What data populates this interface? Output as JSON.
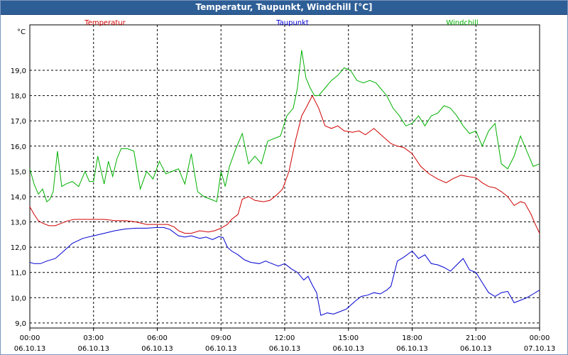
{
  "window": {
    "title": "Temperatur, Taupunkt, Windchill [°C]"
  },
  "colors": {
    "Temperatur": "#d00000",
    "Taupunkt": "#0000d0",
    "Windchill": "#00b000"
  },
  "chart_data": {
    "type": "line",
    "title": "Temperatur, Taupunkt, Windchill [°C]",
    "ylabel": "°C",
    "ylim": [
      8.8,
      20.8
    ],
    "yticks": [
      "19,0",
      "18,0",
      "17,0",
      "16,0",
      "15,0",
      "14,0",
      "13,0",
      "12,0",
      "11,0",
      "10,0",
      "9,0"
    ],
    "ytick_values": [
      19,
      18,
      17,
      16,
      15,
      14,
      13,
      12,
      11,
      10,
      9
    ],
    "xlim": [
      0,
      24
    ],
    "xtick_hours": [
      0,
      3,
      6,
      9,
      12,
      15,
      18,
      21,
      24
    ],
    "xticks_time": [
      "00:00",
      "03:00",
      "06:00",
      "09:00",
      "12:00",
      "15:00",
      "18:00",
      "21:00",
      "00:00"
    ],
    "xticks_date": [
      "06.10.13",
      "06.10.13",
      "06.10.13",
      "06.10.13",
      "06.10.13",
      "06.10.13",
      "06.10.13",
      "06.10.13",
      "07.10.13"
    ],
    "grid": true,
    "legend_position": "top",
    "series": [
      {
        "name": "Temperatur",
        "x": [
          0,
          0.2,
          0.4,
          0.6,
          0.9,
          1.2,
          1.5,
          1.8,
          2.1,
          2.5,
          3,
          3.5,
          4,
          4.5,
          5,
          5.5,
          6,
          6.5,
          6.8,
          7,
          7.3,
          7.6,
          8,
          8.4,
          8.7,
          9,
          9.3,
          9.5,
          9.8,
          10,
          10.3,
          10.6,
          11,
          11.3,
          11.6,
          11.9,
          12.2,
          12.5,
          12.8,
          13,
          13.3,
          13.6,
          13.9,
          14.2,
          14.5,
          14.8,
          15.2,
          15.5,
          15.8,
          16.2,
          16.6,
          17,
          17.3,
          17.6,
          18,
          18.4,
          18.8,
          19.2,
          19.6,
          19.9,
          20.3,
          20.6,
          21,
          21.3,
          21.6,
          21.9,
          22.2,
          22.5,
          22.8,
          23.1,
          23.3,
          23.6,
          23.8,
          24
        ],
        "y": [
          13.6,
          13.3,
          13.05,
          12.95,
          12.85,
          12.85,
          12.95,
          13.05,
          13.1,
          13.1,
          13.1,
          13.1,
          13.05,
          13.05,
          13.0,
          12.9,
          12.9,
          12.9,
          12.8,
          12.65,
          12.55,
          12.55,
          12.65,
          12.6,
          12.65,
          12.75,
          12.9,
          13.1,
          13.3,
          13.9,
          14.0,
          13.85,
          13.8,
          13.85,
          14.05,
          14.3,
          15.0,
          16.2,
          17.2,
          17.5,
          18.0,
          17.5,
          16.8,
          16.7,
          16.8,
          16.6,
          16.55,
          16.6,
          16.45,
          16.7,
          16.4,
          16.1,
          16.0,
          15.95,
          15.7,
          15.2,
          14.9,
          14.7,
          14.55,
          14.7,
          14.85,
          14.8,
          14.75,
          14.55,
          14.4,
          14.35,
          14.2,
          14.0,
          13.65,
          13.8,
          13.75,
          13.3,
          12.9,
          12.55
        ]
      },
      {
        "name": "Taupunkt",
        "x": [
          0,
          0.2,
          0.5,
          0.8,
          1.2,
          1.6,
          2,
          2.5,
          3,
          3.5,
          4,
          4.5,
          5,
          5.5,
          6,
          6.3,
          6.6,
          7,
          7.3,
          7.6,
          8,
          8.3,
          8.6,
          8.9,
          9.1,
          9.3,
          9.5,
          9.8,
          10.1,
          10.4,
          10.8,
          11.1,
          11.4,
          11.7,
          12,
          12.3,
          12.6,
          12.9,
          13.1,
          13.3,
          13.5,
          13.7,
          14,
          14.3,
          14.6,
          14.9,
          15.1,
          15.3,
          15.6,
          15.9,
          16.2,
          16.5,
          16.8,
          17,
          17.3,
          17.6,
          18,
          18.3,
          18.6,
          18.9,
          19.2,
          19.5,
          19.8,
          20.1,
          20.4,
          20.7,
          21,
          21.3,
          21.6,
          21.9,
          22.2,
          22.5,
          22.8,
          23.1,
          23.4,
          23.7,
          24
        ],
        "y": [
          11.4,
          11.35,
          11.35,
          11.45,
          11.55,
          11.85,
          12.15,
          12.35,
          12.45,
          12.55,
          12.65,
          12.72,
          12.75,
          12.75,
          12.78,
          12.78,
          12.7,
          12.45,
          12.4,
          12.45,
          12.35,
          12.4,
          12.3,
          12.42,
          12.38,
          12.0,
          11.85,
          11.7,
          11.5,
          11.4,
          11.35,
          11.45,
          11.35,
          11.25,
          11.35,
          11.15,
          11.0,
          10.7,
          10.85,
          10.5,
          10.2,
          9.3,
          9.4,
          9.35,
          9.45,
          9.55,
          9.7,
          9.85,
          10.05,
          10.1,
          10.2,
          10.15,
          10.3,
          10.45,
          11.45,
          11.6,
          11.85,
          11.55,
          11.7,
          11.35,
          11.3,
          11.2,
          11.05,
          11.3,
          11.55,
          11.1,
          11.0,
          10.6,
          10.2,
          10.05,
          10.2,
          10.25,
          9.8,
          9.9,
          10.0,
          10.15,
          10.3
        ]
      },
      {
        "name": "Windchill",
        "x": [
          0,
          0.2,
          0.4,
          0.6,
          0.8,
          0.95,
          1.1,
          1.3,
          1.5,
          1.7,
          2,
          2.3,
          2.6,
          2.8,
          3,
          3.2,
          3.5,
          3.7,
          3.9,
          4.1,
          4.3,
          4.6,
          4.9,
          5.2,
          5.5,
          5.8,
          6.1,
          6.4,
          6.7,
          7,
          7.3,
          7.6,
          7.9,
          8.2,
          8.5,
          8.8,
          9,
          9.2,
          9.4,
          9.7,
          10,
          10.3,
          10.6,
          10.9,
          11.2,
          11.5,
          11.8,
          12.1,
          12.4,
          12.6,
          12.8,
          13,
          13.2,
          13.4,
          13.6,
          13.9,
          14.2,
          14.5,
          14.8,
          15.1,
          15.4,
          15.7,
          16,
          16.3,
          16.5,
          16.8,
          17.1,
          17.4,
          17.7,
          18,
          18.3,
          18.6,
          18.9,
          19.2,
          19.5,
          19.8,
          20.1,
          20.4,
          20.7,
          21,
          21.3,
          21.6,
          21.9,
          22.2,
          22.5,
          22.8,
          23.1,
          23.4,
          23.7,
          24
        ],
        "y": [
          15.1,
          14.5,
          14.1,
          14.3,
          13.8,
          13.9,
          14.2,
          15.8,
          14.4,
          14.5,
          14.6,
          14.4,
          15.0,
          14.6,
          14.6,
          15.6,
          14.5,
          15.4,
          14.8,
          15.5,
          15.9,
          15.9,
          15.8,
          14.3,
          15.0,
          14.7,
          15.4,
          14.9,
          15.0,
          15.1,
          14.5,
          15.7,
          14.2,
          14.0,
          13.9,
          13.8,
          15.0,
          14.4,
          15.2,
          15.9,
          16.5,
          15.3,
          15.6,
          15.3,
          16.2,
          16.3,
          16.4,
          17.2,
          17.5,
          18.3,
          19.8,
          18.7,
          18.3,
          18.0,
          18.0,
          18.3,
          18.6,
          18.8,
          19.1,
          19.0,
          18.6,
          18.5,
          18.6,
          18.5,
          18.3,
          18.0,
          17.5,
          17.2,
          16.8,
          16.9,
          17.2,
          16.8,
          17.2,
          17.3,
          17.6,
          17.5,
          17.2,
          16.8,
          16.5,
          16.6,
          16.0,
          16.6,
          16.9,
          15.3,
          15.1,
          15.6,
          16.4,
          15.8,
          15.2,
          15.3
        ]
      }
    ]
  }
}
